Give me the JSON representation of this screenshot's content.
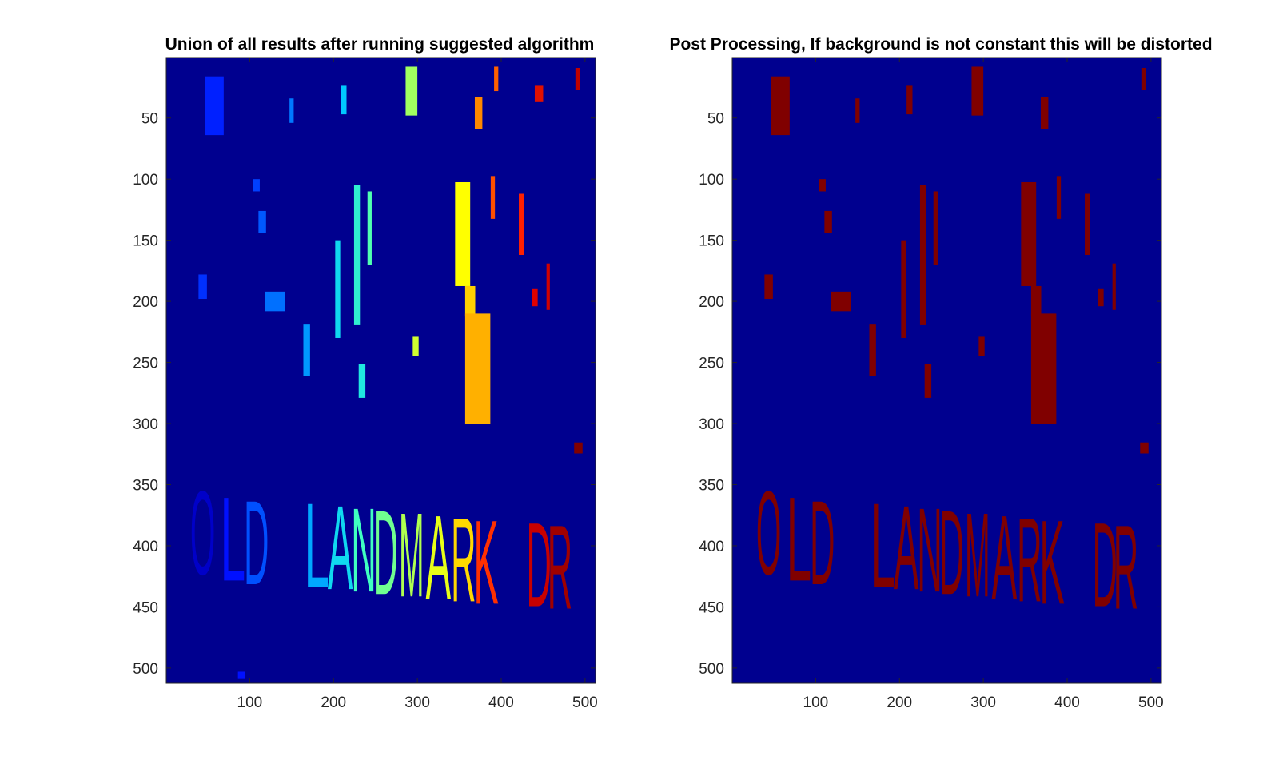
{
  "chart_data": [
    {
      "type": "heatmap",
      "title": "Union of all results after running suggested algorithm",
      "xlabel": "",
      "ylabel": "",
      "xlim": [
        0.5,
        512.5
      ],
      "ylim": [
        512.5,
        0.5
      ],
      "xticks": [
        100,
        200,
        300,
        400,
        500
      ],
      "yticks": [
        50,
        100,
        150,
        200,
        250,
        300,
        350,
        400,
        450,
        500
      ],
      "grid": false,
      "colormap": "jet",
      "background_color": "#00008f",
      "image_text": "OLD LANDMARK DR",
      "letters": [
        {
          "char": "O",
          "x": 44,
          "y": 392,
          "color": "#0000c8"
        },
        {
          "char": "L",
          "x": 80,
          "y": 397,
          "color": "#0010ff"
        },
        {
          "char": "D",
          "x": 108,
          "y": 400,
          "color": "#0050ff"
        },
        {
          "char": "L",
          "x": 180,
          "y": 402,
          "color": "#00a8ff"
        },
        {
          "char": "A",
          "x": 208,
          "y": 404,
          "color": "#10d8f0"
        },
        {
          "char": "N",
          "x": 236,
          "y": 406,
          "color": "#40ffc0"
        },
        {
          "char": "D",
          "x": 262,
          "y": 408,
          "color": "#70ff90"
        },
        {
          "char": "M",
          "x": 293,
          "y": 410,
          "color": "#b0ff50"
        },
        {
          "char": "A",
          "x": 325,
          "y": 412,
          "color": "#e8ff18"
        },
        {
          "char": "R",
          "x": 355,
          "y": 414,
          "color": "#ffd800"
        },
        {
          "char": "K",
          "x": 382,
          "y": 416,
          "color": "#ff3000"
        },
        {
          "char": "D",
          "x": 445,
          "y": 418,
          "color": "#c80000"
        },
        {
          "char": "R",
          "x": 470,
          "y": 420,
          "color": "#a00000"
        }
      ],
      "blobs": [
        {
          "x": 58,
          "y": 40,
          "w": 22,
          "h": 48,
          "color": "#0020ff"
        },
        {
          "x": 150,
          "y": 44,
          "w": 5,
          "h": 20,
          "color": "#0078ff"
        },
        {
          "x": 212,
          "y": 35,
          "w": 7,
          "h": 24,
          "color": "#00c8ff"
        },
        {
          "x": 293,
          "y": 28,
          "w": 14,
          "h": 40,
          "color": "#a0ff60"
        },
        {
          "x": 394,
          "y": 18,
          "w": 5,
          "h": 20,
          "color": "#ff6000"
        },
        {
          "x": 373,
          "y": 46,
          "w": 9,
          "h": 26,
          "color": "#ff8800"
        },
        {
          "x": 445,
          "y": 30,
          "w": 10,
          "h": 14,
          "color": "#e01000"
        },
        {
          "x": 491,
          "y": 18,
          "w": 5,
          "h": 18,
          "color": "#c00000"
        },
        {
          "x": 108,
          "y": 105,
          "w": 8,
          "h": 10,
          "color": "#0040ff"
        },
        {
          "x": 115,
          "y": 135,
          "w": 9,
          "h": 18,
          "color": "#0058ff"
        },
        {
          "x": 44,
          "y": 188,
          "w": 10,
          "h": 20,
          "color": "#0030ff"
        },
        {
          "x": 130,
          "y": 200,
          "w": 24,
          "h": 16,
          "color": "#0070ff"
        },
        {
          "x": 168,
          "y": 240,
          "w": 8,
          "h": 42,
          "color": "#0098ff"
        },
        {
          "x": 205,
          "y": 190,
          "w": 6,
          "h": 80,
          "color": "#10d8f0"
        },
        {
          "x": 228,
          "y": 162,
          "w": 7,
          "h": 115,
          "color": "#30f0d0"
        },
        {
          "x": 243,
          "y": 140,
          "w": 5,
          "h": 60,
          "color": "#50ffb0"
        },
        {
          "x": 234,
          "y": 265,
          "w": 8,
          "h": 28,
          "color": "#20e8e0"
        },
        {
          "x": 298,
          "y": 237,
          "w": 7,
          "h": 16,
          "color": "#d0ff30"
        },
        {
          "x": 354,
          "y": 145,
          "w": 18,
          "h": 85,
          "color": "#ffff00"
        },
        {
          "x": 363,
          "y": 200,
          "w": 12,
          "h": 25,
          "color": "#ffd000"
        },
        {
          "x": 372,
          "y": 255,
          "w": 30,
          "h": 90,
          "color": "#ffb000"
        },
        {
          "x": 390,
          "y": 115,
          "w": 5,
          "h": 35,
          "color": "#ff5000"
        },
        {
          "x": 424,
          "y": 137,
          "w": 6,
          "h": 50,
          "color": "#ff2000"
        },
        {
          "x": 440,
          "y": 197,
          "w": 7,
          "h": 14,
          "color": "#e00000"
        },
        {
          "x": 456,
          "y": 188,
          "w": 4,
          "h": 38,
          "color": "#d00000"
        },
        {
          "x": 492,
          "y": 320,
          "w": 10,
          "h": 9,
          "color": "#800000"
        },
        {
          "x": 90,
          "y": 506,
          "w": 8,
          "h": 6,
          "color": "#0010ff"
        }
      ]
    },
    {
      "type": "heatmap",
      "title": "Post Processing, If background is not constant this will be distorted",
      "xlabel": "",
      "ylabel": "",
      "xlim": [
        0.5,
        512.5
      ],
      "ylim": [
        512.5,
        0.5
      ],
      "xticks": [
        100,
        200,
        300,
        400,
        500
      ],
      "yticks": [
        50,
        100,
        150,
        200,
        250,
        300,
        350,
        400,
        450,
        500
      ],
      "grid": false,
      "colormap": "binary",
      "background_color": "#00008f",
      "foreground_color": "#800000",
      "image_text": "OLD LANDMARK DR",
      "letters": [
        {
          "char": "O",
          "x": 44,
          "y": 392,
          "color": "#800000"
        },
        {
          "char": "L",
          "x": 80,
          "y": 397,
          "color": "#800000"
        },
        {
          "char": "D",
          "x": 108,
          "y": 400,
          "color": "#800000"
        },
        {
          "char": "L",
          "x": 180,
          "y": 402,
          "color": "#800000"
        },
        {
          "char": "A",
          "x": 208,
          "y": 404,
          "color": "#800000"
        },
        {
          "char": "N",
          "x": 236,
          "y": 406,
          "color": "#800000"
        },
        {
          "char": "D",
          "x": 262,
          "y": 408,
          "color": "#800000"
        },
        {
          "char": "M",
          "x": 293,
          "y": 410,
          "color": "#800000"
        },
        {
          "char": "A",
          "x": 325,
          "y": 412,
          "color": "#800000"
        },
        {
          "char": "R",
          "x": 355,
          "y": 414,
          "color": "#800000"
        },
        {
          "char": "K",
          "x": 382,
          "y": 416,
          "color": "#800000"
        },
        {
          "char": "D",
          "x": 445,
          "y": 418,
          "color": "#800000"
        },
        {
          "char": "R",
          "x": 470,
          "y": 420,
          "color": "#800000"
        }
      ],
      "blobs": [
        {
          "x": 58,
          "y": 40,
          "w": 22,
          "h": 48,
          "color": "#800000"
        },
        {
          "x": 150,
          "y": 44,
          "w": 5,
          "h": 20,
          "color": "#800000"
        },
        {
          "x": 212,
          "y": 35,
          "w": 7,
          "h": 24,
          "color": "#800000"
        },
        {
          "x": 293,
          "y": 28,
          "w": 14,
          "h": 40,
          "color": "#800000"
        },
        {
          "x": 373,
          "y": 46,
          "w": 9,
          "h": 26,
          "color": "#800000"
        },
        {
          "x": 491,
          "y": 18,
          "w": 5,
          "h": 18,
          "color": "#800000"
        },
        {
          "x": 108,
          "y": 105,
          "w": 8,
          "h": 10,
          "color": "#800000"
        },
        {
          "x": 115,
          "y": 135,
          "w": 9,
          "h": 18,
          "color": "#800000"
        },
        {
          "x": 44,
          "y": 188,
          "w": 10,
          "h": 20,
          "color": "#800000"
        },
        {
          "x": 130,
          "y": 200,
          "w": 24,
          "h": 16,
          "color": "#800000"
        },
        {
          "x": 168,
          "y": 240,
          "w": 8,
          "h": 42,
          "color": "#800000"
        },
        {
          "x": 205,
          "y": 190,
          "w": 6,
          "h": 80,
          "color": "#800000"
        },
        {
          "x": 228,
          "y": 162,
          "w": 7,
          "h": 115,
          "color": "#800000"
        },
        {
          "x": 243,
          "y": 140,
          "w": 5,
          "h": 60,
          "color": "#800000"
        },
        {
          "x": 234,
          "y": 265,
          "w": 8,
          "h": 28,
          "color": "#800000"
        },
        {
          "x": 298,
          "y": 237,
          "w": 7,
          "h": 16,
          "color": "#800000"
        },
        {
          "x": 354,
          "y": 145,
          "w": 18,
          "h": 85,
          "color": "#800000"
        },
        {
          "x": 363,
          "y": 200,
          "w": 12,
          "h": 25,
          "color": "#800000"
        },
        {
          "x": 372,
          "y": 255,
          "w": 30,
          "h": 90,
          "color": "#800000"
        },
        {
          "x": 390,
          "y": 115,
          "w": 5,
          "h": 35,
          "color": "#800000"
        },
        {
          "x": 424,
          "y": 137,
          "w": 6,
          "h": 50,
          "color": "#800000"
        },
        {
          "x": 440,
          "y": 197,
          "w": 7,
          "h": 14,
          "color": "#800000"
        },
        {
          "x": 456,
          "y": 188,
          "w": 4,
          "h": 38,
          "color": "#800000"
        },
        {
          "x": 492,
          "y": 320,
          "w": 10,
          "h": 9,
          "color": "#800000"
        }
      ]
    }
  ]
}
